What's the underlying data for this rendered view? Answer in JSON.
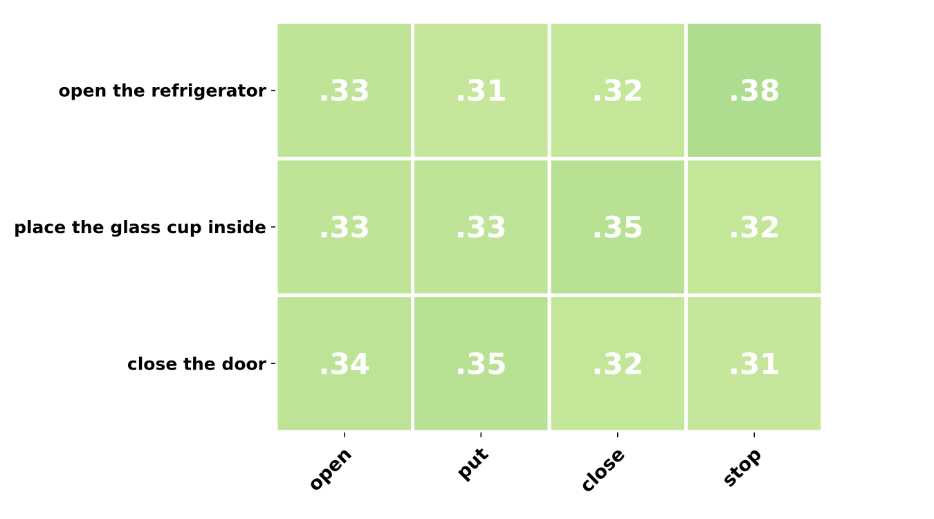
{
  "chart_data": {
    "type": "heatmap",
    "title": "",
    "xlabel": "",
    "ylabel": "",
    "rows": [
      "open the refrigerator",
      "place the glass cup inside",
      "close the door"
    ],
    "columns": [
      "open",
      "put",
      "close",
      "stop"
    ],
    "values": [
      [
        0.33,
        0.31,
        0.32,
        0.38
      ],
      [
        0.33,
        0.33,
        0.35,
        0.32
      ],
      [
        0.34,
        0.35,
        0.32,
        0.31
      ]
    ],
    "value_labels": [
      [
        ".33",
        ".31",
        ".32",
        ".38"
      ],
      [
        ".33",
        ".33",
        ".35",
        ".32"
      ],
      [
        ".34",
        ".35",
        ".32",
        ".31"
      ]
    ],
    "color_range": [
      0.31,
      0.38
    ],
    "colors": {
      "low": "#c6e79b",
      "high": "#aedd8f",
      "cell_text": "#ffffff",
      "cell_border": "#ffffff",
      "label_text": "#000000"
    },
    "grid": false,
    "colorbar": false
  }
}
